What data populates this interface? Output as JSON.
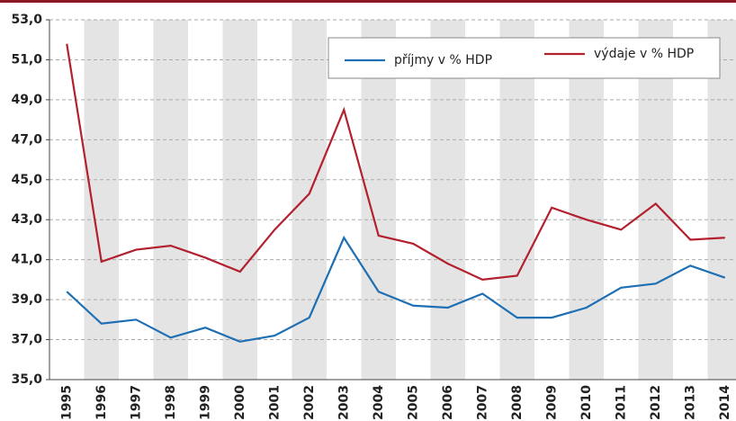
{
  "chart_data": {
    "type": "line",
    "categories": [
      "1995",
      "1996",
      "1997",
      "1998",
      "1999",
      "2000",
      "2001",
      "2002",
      "2003",
      "2004",
      "2005",
      "2006",
      "2007",
      "2008",
      "2009",
      "2010",
      "2011",
      "2012",
      "2013",
      "2014"
    ],
    "series": [
      {
        "name": "příjmy v % HDP",
        "color": "#1f6fb4",
        "values": [
          39.4,
          37.8,
          38.0,
          37.1,
          37.6,
          36.9,
          37.2,
          38.1,
          42.1,
          39.4,
          38.7,
          38.6,
          39.3,
          38.1,
          38.1,
          38.6,
          39.6,
          39.8,
          40.7,
          40.1
        ]
      },
      {
        "name": "výdaje v % HDP",
        "color": "#b3202e",
        "values": [
          51.8,
          40.9,
          41.5,
          41.7,
          41.1,
          40.4,
          42.5,
          44.3,
          48.5,
          42.2,
          41.8,
          40.8,
          40.0,
          40.2,
          43.6,
          43.0,
          42.5,
          43.8,
          42.0,
          42.1
        ]
      }
    ],
    "ylim": [
      35,
      53
    ],
    "yticks": [
      {
        "value": 35,
        "label": "35,0"
      },
      {
        "value": 37,
        "label": "37,0"
      },
      {
        "value": 39,
        "label": "39,0"
      },
      {
        "value": 41,
        "label": "41,0"
      },
      {
        "value": 43,
        "label": "43,0"
      },
      {
        "value": 45,
        "label": "45,0"
      },
      {
        "value": 47,
        "label": "47,0"
      },
      {
        "value": 49,
        "label": "49,0"
      },
      {
        "value": 51,
        "label": "51,0"
      },
      {
        "value": 53,
        "label": "53,0"
      }
    ],
    "grid": true,
    "legend": "top-right"
  }
}
